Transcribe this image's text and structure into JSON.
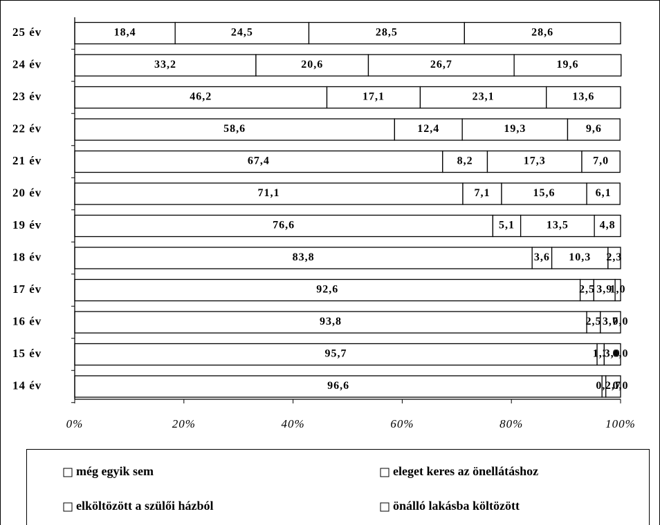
{
  "chart_data": {
    "type": "stacked_bar_horizontal",
    "categories": [
      "25 év",
      "24 év",
      "23 év",
      "22 év",
      "21 év",
      "20 év",
      "19 év",
      "18 év",
      "17 év",
      "16 év",
      "15 év",
      "14 év"
    ],
    "series": [
      {
        "name": "még egyik sem",
        "color": "#ffffff",
        "values": [
          18.4,
          33.2,
          46.2,
          58.6,
          67.4,
          71.1,
          76.6,
          83.8,
          92.6,
          93.8,
          95.7,
          96.6
        ],
        "value_labels": [
          "18,4",
          "33,2",
          "46,2",
          "58,6",
          "67,4",
          "71,1",
          "76,6",
          "83,8",
          "92,6",
          "93,8",
          "95,7",
          "96,6"
        ]
      },
      {
        "name": "eleget keres az önellátáshoz",
        "color": "#ffffff",
        "values": [
          24.5,
          20.6,
          17.1,
          12.4,
          8.2,
          7.1,
          5.1,
          3.6,
          2.5,
          2.5,
          1.3,
          0.7
        ],
        "value_labels": [
          "24,5",
          "20,6",
          "17,1",
          "12,4",
          "8,2",
          "7,1",
          "5,1",
          "3,6",
          "2,5",
          "2,5",
          "1,3",
          "0,7"
        ]
      },
      {
        "name": "elköltözött a szülői házból",
        "color": "#ffffff",
        "values": [
          28.5,
          26.7,
          23.1,
          19.3,
          17.3,
          15.6,
          13.5,
          10.3,
          3.9,
          3.7,
          3.0,
          2.7
        ],
        "value_labels": [
          "28,5",
          "26,7",
          "23,1",
          "19,3",
          "17,3",
          "15,6",
          "13,5",
          "10,3",
          "3,9",
          "3,7",
          "3,0",
          "2,7"
        ]
      },
      {
        "name": "önálló lakásba költözött",
        "color": "#ffffff",
        "values": [
          28.6,
          19.6,
          13.6,
          9.6,
          7.0,
          6.1,
          4.8,
          2.3,
          1.0,
          0.0,
          0.0,
          0.0
        ],
        "value_labels": [
          "28,6",
          "19,6",
          "13,6",
          "9,6",
          "7,0",
          "6,1",
          "4,8",
          "2,3",
          "1,0",
          "0,0",
          "0,0",
          "0,0"
        ]
      }
    ],
    "xlim": [
      0,
      100
    ],
    "xticks": [
      {
        "value": 0,
        "label": "0%"
      },
      {
        "value": 20,
        "label": "20%"
      },
      {
        "value": 40,
        "label": "40%"
      },
      {
        "value": 60,
        "label": "60%"
      },
      {
        "value": 80,
        "label": "80%"
      },
      {
        "value": 100,
        "label": "100%"
      }
    ],
    "legend": "bottom"
  }
}
